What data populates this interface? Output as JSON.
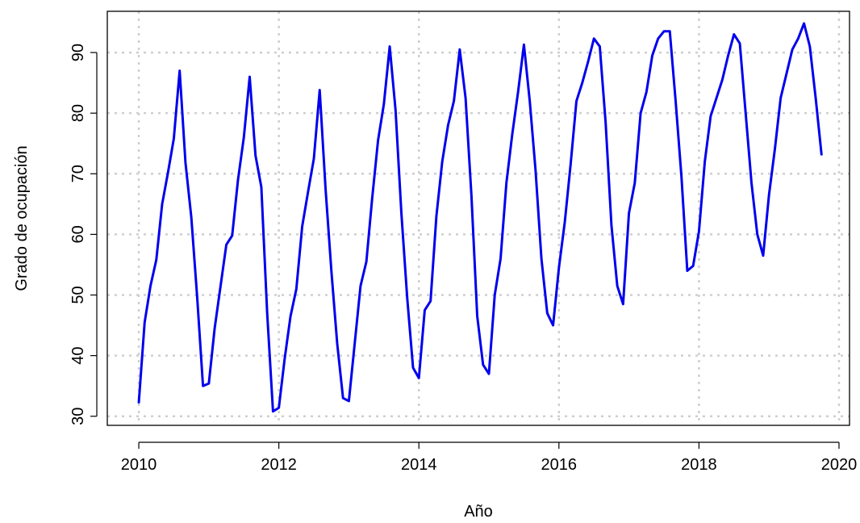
{
  "chart_data": {
    "type": "line",
    "title": "",
    "xlabel": "Año",
    "ylabel": "Grado de ocupación",
    "xlim": [
      2009.55,
      2020.15
    ],
    "ylim": [
      28.5,
      96.8
    ],
    "xticks": [
      2010,
      2012,
      2014,
      2016,
      2018,
      2020
    ],
    "yticks": [
      30,
      40,
      50,
      60,
      70,
      80,
      90
    ],
    "grid": true,
    "colors": {
      "series": "#0000ee",
      "grid": "#cfcfcf",
      "axis": "#000000"
    },
    "series": [
      {
        "x_start": 2010.0,
        "x_step_months": 1,
        "values": [
          32.3,
          45.5,
          51.5,
          55.8,
          65.0,
          70.2,
          75.8,
          87.0,
          71.8,
          62.8,
          49.7,
          35.0,
          35.4,
          44.5,
          51.4,
          58.3,
          59.8,
          69.0,
          76.0,
          86.0,
          73.0,
          67.8,
          47.0,
          30.8,
          31.4,
          39.5,
          46.5,
          51.0,
          61.3,
          67.0,
          72.5,
          83.8,
          67.6,
          54.0,
          42.0,
          33.0,
          32.5,
          42.0,
          51.5,
          55.5,
          66.0,
          75.5,
          81.5,
          91.0,
          80.5,
          63.5,
          49.5,
          38.0,
          36.3,
          47.5,
          49.0,
          63.0,
          72.0,
          78.0,
          82.0,
          90.5,
          82.5,
          66.5,
          46.5,
          38.5,
          37.0,
          50.0,
          56.0,
          68.5,
          76.5,
          83.5,
          91.3,
          82.0,
          70.5,
          56.0,
          47.0,
          45.0,
          54.5,
          62.0,
          71.5,
          82.0,
          85.0,
          88.5,
          92.3,
          91.0,
          78.5,
          61.5,
          51.5,
          48.5,
          63.5,
          68.5,
          80.0,
          83.5,
          89.5,
          92.3,
          93.5,
          93.5,
          82.0,
          69.5,
          54.0,
          54.8,
          60.5,
          72.0,
          79.5,
          82.5,
          85.5,
          89.5,
          93.0,
          91.5,
          80.0,
          68.5,
          60.0,
          56.5,
          66.5,
          74.0,
          82.5,
          86.5,
          90.5,
          92.3,
          94.8,
          91.0,
          82.5,
          73.2
        ]
      }
    ]
  }
}
